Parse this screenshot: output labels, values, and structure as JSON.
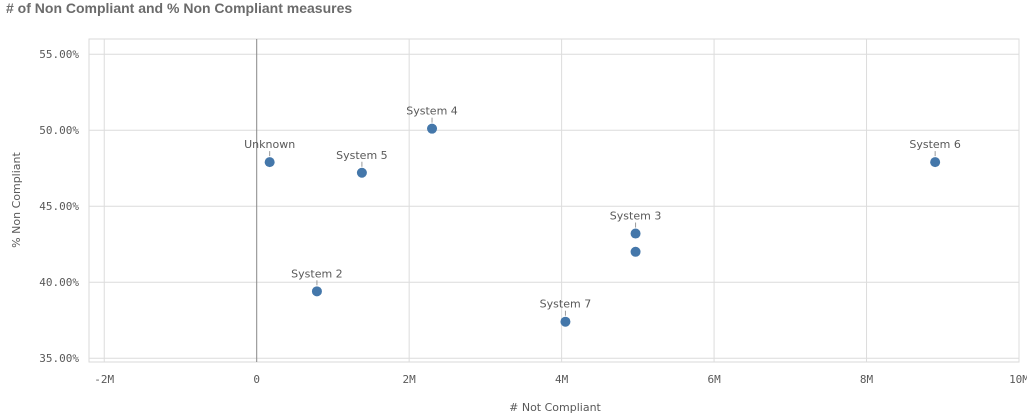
{
  "chart_data": {
    "type": "scatter",
    "title": "# of Non Compliant and % Non Compliant measures",
    "xlabel": "# Not Compliant",
    "ylabel": "% Non Compliant",
    "xlim": [
      -2.2,
      10
    ],
    "ylim": [
      34.75,
      56.0
    ],
    "x_ticks": [
      -2,
      0,
      2,
      4,
      6,
      8,
      10
    ],
    "x_tick_labels": [
      "-2M",
      "0",
      "2M",
      "4M",
      "6M",
      "8M",
      "10M"
    ],
    "y_ticks": [
      35,
      40,
      45,
      50,
      55
    ],
    "y_tick_labels": [
      "35.00%",
      "40.00%",
      "45.00%",
      "50.00%",
      "55.00%"
    ],
    "x_units": "millions",
    "y_units": "percent",
    "grid": true,
    "point_color": "#4477aa",
    "points": [
      {
        "label": "Unknown",
        "x": 0.17,
        "y": 47.9
      },
      {
        "label": "System 2",
        "x": 0.79,
        "y": 39.4
      },
      {
        "label": "System 3",
        "x": 4.97,
        "y": 43.2
      },
      {
        "label": "",
        "x": 4.97,
        "y": 42.0
      },
      {
        "label": "System 4",
        "x": 2.3,
        "y": 50.1
      },
      {
        "label": "System 5",
        "x": 1.38,
        "y": 47.2
      },
      {
        "label": "System 6",
        "x": 8.9,
        "y": 47.9
      },
      {
        "label": "System 7",
        "x": 4.05,
        "y": 37.4
      }
    ]
  }
}
